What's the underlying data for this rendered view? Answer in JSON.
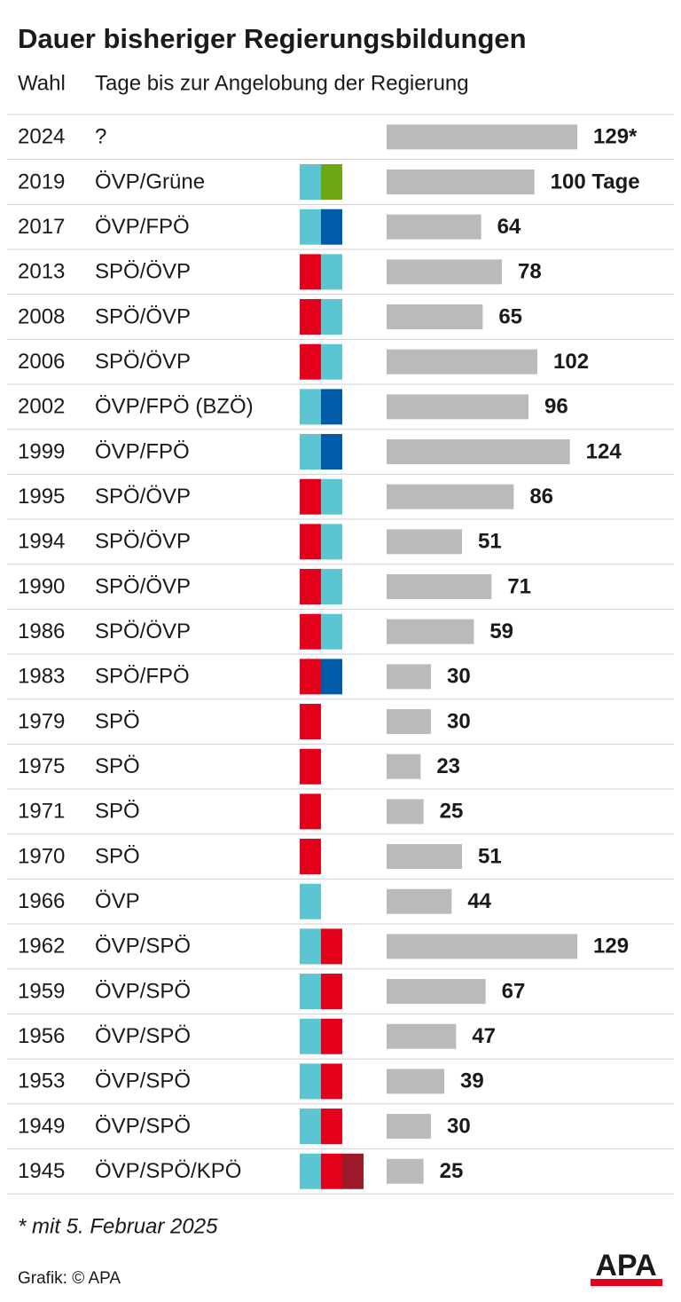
{
  "chart_data": {
    "type": "bar",
    "title": "Dauer bisheriger Regierungsbildungen",
    "category_header": "Wahl",
    "value_header": "Tage bis zur Angelobung der Regierung",
    "categories": [
      "2024",
      "2019",
      "2017",
      "2013",
      "2008",
      "2006",
      "2002",
      "1999",
      "1995",
      "1994",
      "1990",
      "1986",
      "1983",
      "1979",
      "1975",
      "1971",
      "1970",
      "1966",
      "1962",
      "1959",
      "1956",
      "1953",
      "1949",
      "1945"
    ],
    "parties": [
      "?",
      "ÖVP/Grüne",
      "ÖVP/FPÖ",
      "SPÖ/ÖVP",
      "SPÖ/ÖVP",
      "SPÖ/ÖVP",
      "ÖVP/FPÖ (BZÖ)",
      "ÖVP/FPÖ",
      "SPÖ/ÖVP",
      "SPÖ/ÖVP",
      "SPÖ/ÖVP",
      "SPÖ/ÖVP",
      "SPÖ/FPÖ",
      "SPÖ",
      "SPÖ",
      "SPÖ",
      "SPÖ",
      "ÖVP",
      "ÖVP/SPÖ",
      "ÖVP/SPÖ",
      "ÖVP/SPÖ",
      "ÖVP/SPÖ",
      "ÖVP/SPÖ",
      "ÖVP/SPÖ/KPÖ"
    ],
    "party_colors": [
      [],
      [
        "#5bc5d2",
        "#6fa616"
      ],
      [
        "#5bc5d2",
        "#005ba8"
      ],
      [
        "#e2001a",
        "#5bc5d2"
      ],
      [
        "#e2001a",
        "#5bc5d2"
      ],
      [
        "#e2001a",
        "#5bc5d2"
      ],
      [
        "#5bc5d2",
        "#005ba8"
      ],
      [
        "#5bc5d2",
        "#005ba8"
      ],
      [
        "#e2001a",
        "#5bc5d2"
      ],
      [
        "#e2001a",
        "#5bc5d2"
      ],
      [
        "#e2001a",
        "#5bc5d2"
      ],
      [
        "#e2001a",
        "#5bc5d2"
      ],
      [
        "#e2001a",
        "#005ba8"
      ],
      [
        "#e2001a"
      ],
      [
        "#e2001a"
      ],
      [
        "#e2001a"
      ],
      [
        "#e2001a"
      ],
      [
        "#5bc5d2"
      ],
      [
        "#5bc5d2",
        "#e2001a"
      ],
      [
        "#5bc5d2",
        "#e2001a"
      ],
      [
        "#5bc5d2",
        "#e2001a"
      ],
      [
        "#5bc5d2",
        "#e2001a"
      ],
      [
        "#5bc5d2",
        "#e2001a"
      ],
      [
        "#5bc5d2",
        "#e2001a",
        "#9b1b2a"
      ]
    ],
    "values": [
      129,
      100,
      64,
      78,
      65,
      102,
      96,
      124,
      86,
      51,
      71,
      59,
      30,
      30,
      23,
      25,
      51,
      44,
      129,
      67,
      47,
      39,
      30,
      25
    ],
    "value_labels": [
      "129*",
      "100 Tage",
      "64",
      "78",
      "65",
      "102",
      "96",
      "124",
      "86",
      "51",
      "71",
      "59",
      "30",
      "30",
      "23",
      "25",
      "51",
      "44",
      "129",
      "67",
      "47",
      "39",
      "30",
      "25"
    ],
    "color": "#b9babc",
    "footnote": "* mit 5. Februar 2025",
    "source": "Grafik: © APA",
    "logo": "APA"
  }
}
